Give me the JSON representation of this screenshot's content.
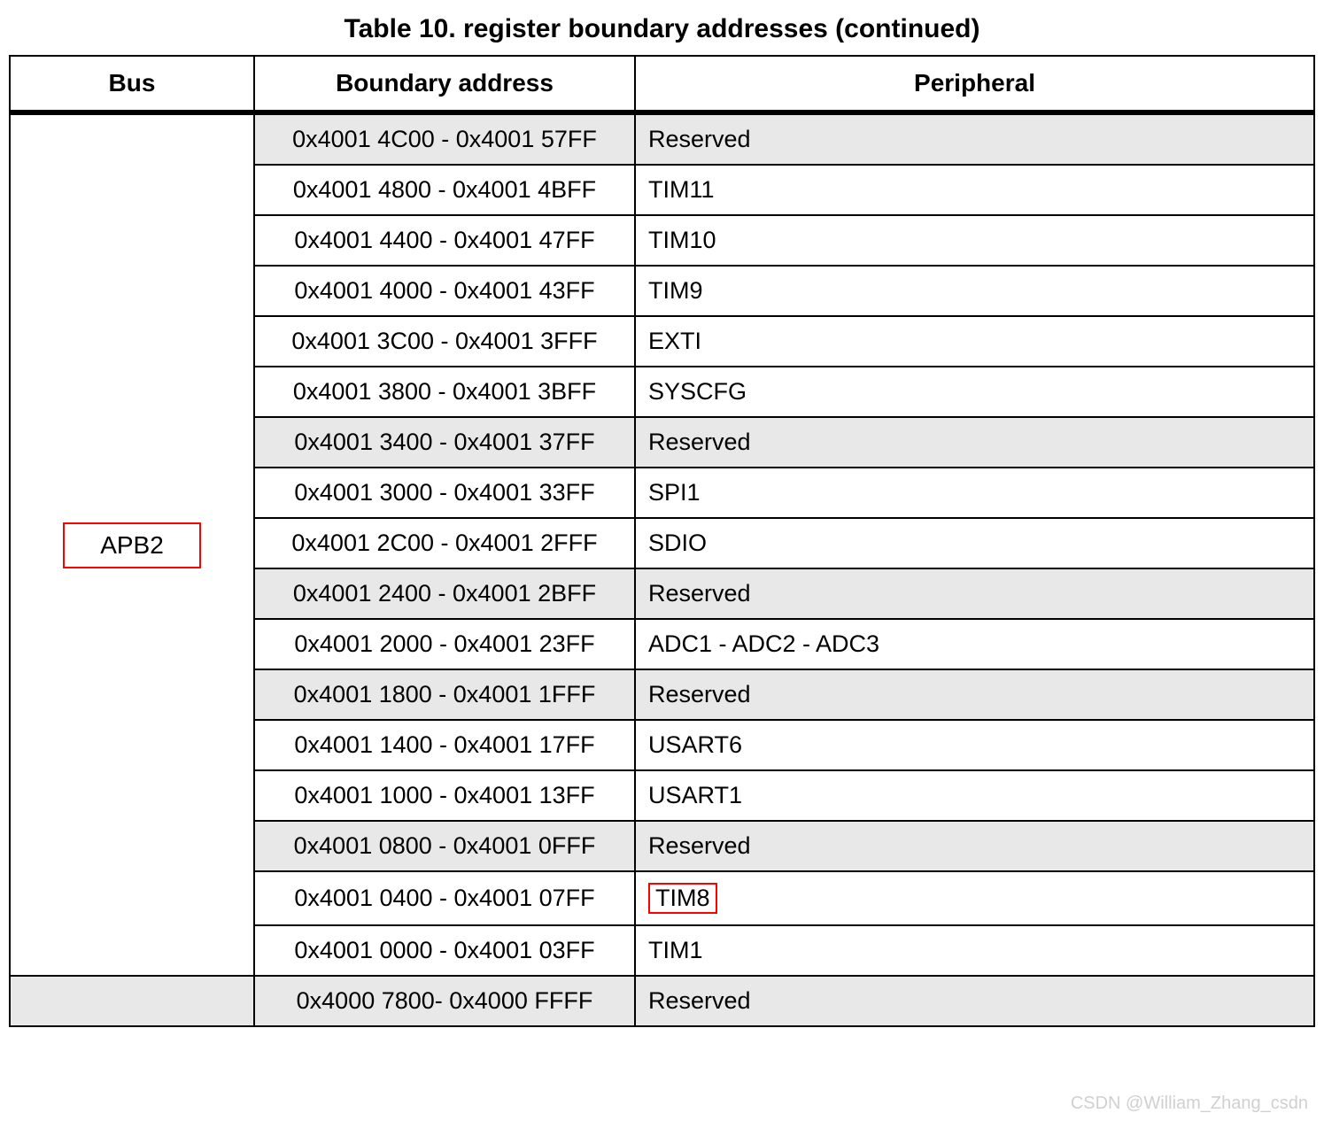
{
  "title": "Table 10.  register boundary addresses (continued)",
  "columns": [
    "Bus",
    "Boundary address",
    "Peripheral"
  ],
  "bus_label": "APB2",
  "bus_rowspan": 17,
  "highlight_peripheral": "TIM8",
  "shaded_bg": "#e8e8e8",
  "plain_bg": "#ffffff",
  "highlight_color": "#ff0000",
  "rows": [
    {
      "addr": "0x4001 4C00 - 0x4001 57FF",
      "periph": "Reserved",
      "shaded": true
    },
    {
      "addr": "0x4001 4800 - 0x4001 4BFF",
      "periph": "TIM11",
      "shaded": false
    },
    {
      "addr": "0x4001 4400 - 0x4001 47FF",
      "periph": "TIM10",
      "shaded": false
    },
    {
      "addr": "0x4001 4000 - 0x4001 43FF",
      "periph": "TIM9",
      "shaded": false
    },
    {
      "addr": "0x4001 3C00 - 0x4001 3FFF",
      "periph": "EXTI",
      "shaded": false
    },
    {
      "addr": "0x4001 3800 - 0x4001 3BFF",
      "periph": "SYSCFG",
      "shaded": false
    },
    {
      "addr": "0x4001 3400 - 0x4001 37FF",
      "periph": "Reserved",
      "shaded": true
    },
    {
      "addr": "0x4001 3000 - 0x4001 33FF",
      "periph": "SPI1",
      "shaded": false
    },
    {
      "addr": "0x4001 2C00 - 0x4001 2FFF",
      "periph": "SDIO",
      "shaded": false
    },
    {
      "addr": "0x4001 2400 - 0x4001 2BFF",
      "periph": "Reserved",
      "shaded": true
    },
    {
      "addr": "0x4001 2000 - 0x4001 23FF",
      "periph": "ADC1 - ADC2 - ADC3",
      "shaded": false
    },
    {
      "addr": "0x4001 1800 - 0x4001 1FFF",
      "periph": "Reserved",
      "shaded": true
    },
    {
      "addr": "0x4001 1400 - 0x4001 17FF",
      "periph": "USART6",
      "shaded": false
    },
    {
      "addr": "0x4001 1000 - 0x4001 13FF",
      "periph": "USART1",
      "shaded": false
    },
    {
      "addr": "0x4001 0800 - 0x4001 0FFF",
      "periph": "Reserved",
      "shaded": true
    },
    {
      "addr": "0x4001 0400 - 0x4001 07FF",
      "periph": "TIM8",
      "shaded": false,
      "highlight": true
    },
    {
      "addr": "0x4001 0000 - 0x4001 03FF",
      "periph": "TIM1",
      "shaded": false
    }
  ],
  "tail_row": {
    "addr": "0x4000 7800- 0x4000 FFFF",
    "periph": "Reserved",
    "shaded": true,
    "bus_shaded": true
  },
  "watermark": "CSDN @William_Zhang_csdn"
}
